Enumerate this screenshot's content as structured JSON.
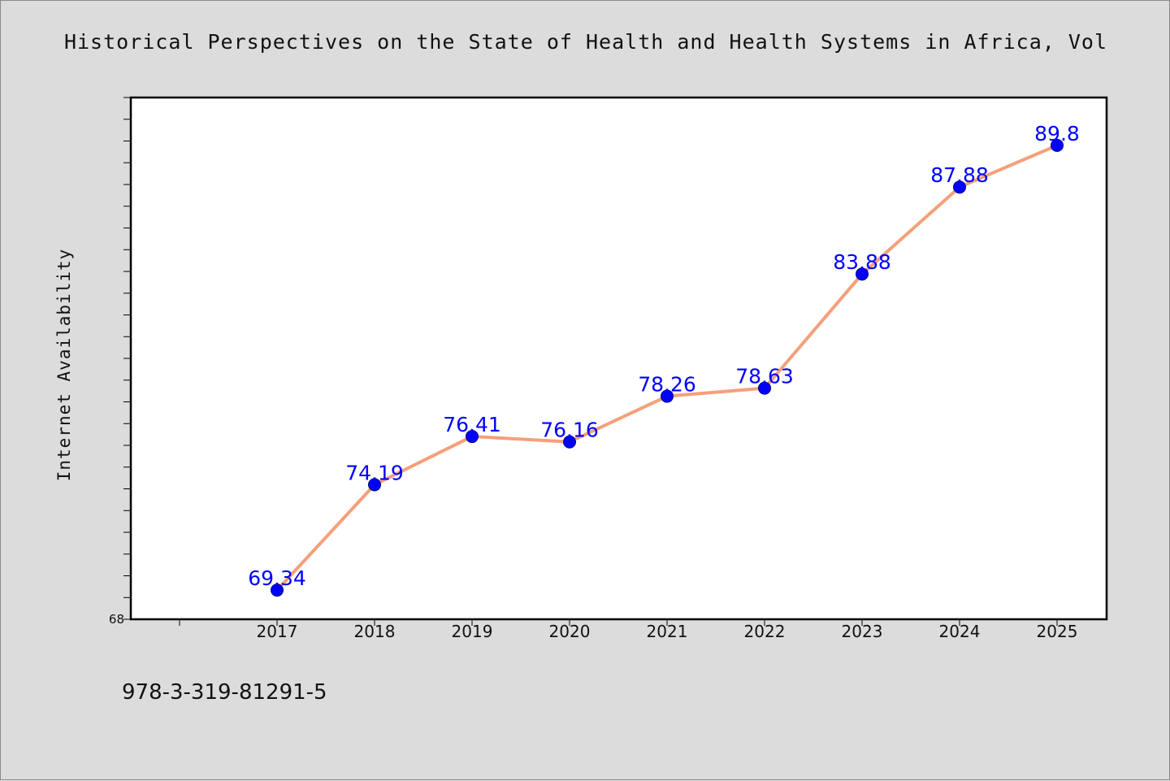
{
  "title": "Historical Perspectives on the State of Health and Health Systems in Africa, Vol",
  "footer_text": "978-3-319-81291-5",
  "colors": {
    "background": "#dcdcdc",
    "plot_background": "#ffffff",
    "line": "#f4a07a",
    "marker": "#0000ff",
    "data_label": "#0000ff"
  },
  "chart_data": {
    "type": "line",
    "title": "Historical Perspectives on the State of Health and Health Systems in Africa, Vol",
    "xlabel": "",
    "ylabel": "Internet Availability",
    "categories": [
      "2017",
      "2018",
      "2019",
      "2020",
      "2021",
      "2022",
      "2023",
      "2024",
      "2025"
    ],
    "series": [
      {
        "values": [
          69.34,
          74.19,
          76.41,
          76.16,
          78.26,
          78.63,
          83.88,
          87.88,
          89.8
        ]
      }
    ],
    "ylim": [
      68,
      92
    ],
    "y_tick_labels": [
      "68"
    ],
    "data_labels": [
      "69.34",
      "74.19",
      "76.41",
      "76.16",
      "78.26",
      "78.63",
      "83.88",
      "87.88",
      "89.8"
    ],
    "grid": false,
    "legend": "none"
  }
}
